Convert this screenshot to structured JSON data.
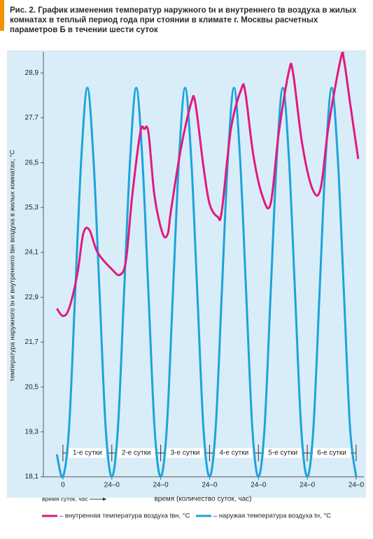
{
  "chart_data": {
    "type": "line",
    "title": "Рис. 2. График изменения температур наружного tн и внутреннего tв воздуха в жилых комнатах в теплый период года при стоянии в климате г. Москвы расчетных параметров Б в течении шести суток",
    "y_label": "температура наружного tн и внутреннего tвн воздуха в жилых комнатах, °С",
    "x_label": "время (количество суток, час)",
    "x_note": "время суток, час",
    "xlim": [
      -9.6,
      147.8
    ],
    "ylim": [
      18.1,
      29.4
    ],
    "xticks": [
      0,
      {
        "value": 24,
        "label": "24–0"
      },
      {
        "value": 48,
        "label": "24–0"
      },
      {
        "value": 72,
        "label": "24–0"
      },
      {
        "value": 96,
        "label": "24–0"
      },
      {
        "value": 120,
        "label": "24–0"
      },
      {
        "value": 144,
        "label": "24–0"
      }
    ],
    "yticks": [
      {
        "value": 18.1,
        "label": "18,1"
      },
      {
        "value": 19.3,
        "label": "19,3"
      },
      {
        "value": 20.5,
        "label": "20,5"
      },
      {
        "value": 21.7,
        "label": "21,7"
      },
      {
        "value": 22.9,
        "label": "22,9"
      },
      {
        "value": 24.1,
        "label": "24,1"
      },
      {
        "value": 25.3,
        "label": "25,3"
      },
      {
        "value": 26.5,
        "label": "26,5"
      },
      {
        "value": 27.7,
        "label": "27,7"
      },
      {
        "value": 28.9,
        "label": "28,9"
      }
    ],
    "day_labels": [
      "1-е сутки",
      "2-е сутки",
      "3-е сутки",
      "4-е сутки",
      "5-е сутки",
      "6-е сутки"
    ],
    "series": [
      {
        "name": "– внутренняя температура воздуха tвн, °С",
        "color": "#e2197f",
        "x": [
          -3,
          0,
          3,
          7,
          10,
          13,
          17,
          24,
          28,
          31,
          34,
          38,
          40,
          42,
          45,
          49,
          51.5,
          53,
          58,
          63,
          65,
          69,
          72,
          76,
          78,
          82.5,
          87.5,
          89.5,
          93.5,
          98,
          102,
          106,
          111,
          113,
          117.5,
          122.5,
          126.5,
          130.5,
          136.5,
          138,
          141,
          145
        ],
        "values": [
          22.6,
          22.4,
          22.6,
          23.5,
          24.6,
          24.7,
          24.1,
          23.65,
          23.5,
          23.9,
          25.6,
          27.3,
          27.4,
          27.3,
          25.6,
          24.6,
          24.6,
          25.2,
          26.9,
          28.1,
          28.1,
          26.4,
          25.4,
          25.05,
          25.2,
          27.4,
          28.45,
          28.4,
          26.7,
          25.6,
          25.4,
          27.3,
          28.95,
          28.9,
          27.0,
          25.8,
          25.8,
          27.5,
          29.3,
          29.25,
          28.1,
          26.6
        ]
      },
      {
        "name": "– наружая температура воздуха tн, °С",
        "color": "#1ca3dc",
        "x": [
          -3,
          0,
          3,
          6,
          9,
          12,
          15,
          18,
          21,
          24,
          27,
          30,
          33,
          36,
          39,
          42,
          45,
          48,
          51,
          54,
          57,
          60,
          63,
          66,
          69,
          72,
          75,
          78,
          81,
          84,
          87,
          90,
          93,
          96,
          99,
          102,
          105,
          108,
          111,
          114,
          117,
          120,
          123,
          126,
          129,
          132,
          135,
          138,
          141,
          144
        ],
        "values": [
          18.7,
          18.1,
          19.4,
          23.0,
          26.6,
          28.5,
          26.6,
          23.0,
          19.4,
          18.1,
          19.4,
          23.0,
          26.6,
          28.5,
          26.6,
          23.0,
          19.4,
          18.1,
          19.4,
          23.0,
          26.6,
          28.5,
          26.6,
          23.0,
          19.4,
          18.1,
          19.4,
          23.0,
          26.6,
          28.5,
          26.6,
          23.0,
          19.4,
          18.1,
          19.4,
          23.0,
          26.6,
          28.5,
          26.6,
          23.0,
          19.4,
          18.1,
          19.4,
          23.0,
          26.6,
          28.5,
          26.6,
          23.0,
          19.4,
          18.1
        ]
      }
    ]
  }
}
